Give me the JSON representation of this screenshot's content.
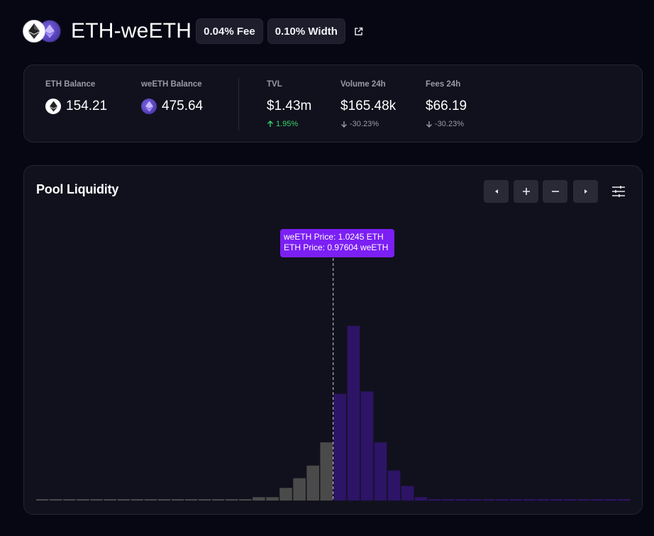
{
  "header": {
    "pair_title": "ETH-weETH",
    "fee_chip": "0.04% Fee",
    "width_chip": "0.10% Width",
    "icons": [
      "eth-token-icon",
      "weeth-token-icon",
      "external-link-icon"
    ]
  },
  "stats": {
    "eth_balance": {
      "label": "ETH Balance",
      "value": "154.21"
    },
    "weeth_balance": {
      "label": "weETH Balance",
      "value": "475.64"
    },
    "tvl": {
      "label": "TVL",
      "value": "$1.43m",
      "change": "1.95%",
      "direction": "up"
    },
    "volume": {
      "label": "Volume 24h",
      "value": "$165.48k",
      "change": "-30.23%",
      "direction": "down"
    },
    "fees": {
      "label": "Fees 24h",
      "value": "$66.19",
      "change": "-30.23%",
      "direction": "down"
    }
  },
  "liquidity": {
    "title": "Pool Liquidity",
    "controls": [
      "pan-left-button",
      "zoom-in-button",
      "zoom-out-button",
      "pan-right-button",
      "settings-button"
    ],
    "tooltip": {
      "line1": "weETH Price:  1.0245 ETH",
      "line2": "ETH Price:  0.97604 weETH"
    }
  },
  "colors": {
    "background": "#070714",
    "card": "#11111d",
    "bar_left": "#4a4a4a",
    "bar_right": "#2d1466",
    "tooltip": "#7b1ff5",
    "positive": "#33d66b"
  },
  "chart_data": {
    "type": "bar",
    "bar_count": 44,
    "current_price_index": 22,
    "values": [
      2,
      2,
      2,
      2,
      2,
      2,
      2,
      2,
      2,
      2,
      2,
      2,
      2,
      2,
      2,
      2,
      7,
      7,
      26,
      46,
      72,
      120,
      220,
      360,
      225,
      120,
      62,
      30,
      7,
      2,
      2,
      2,
      2,
      2,
      2,
      2,
      2,
      2,
      2,
      2,
      2,
      2,
      2,
      2
    ],
    "ylim": [
      0,
      380
    ]
  }
}
